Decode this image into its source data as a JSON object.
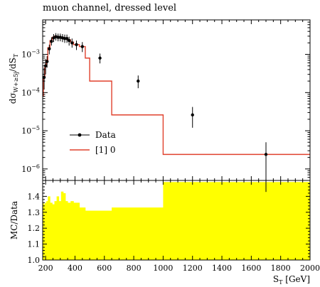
{
  "title": "muon channel, dressed level",
  "chart_data": [
    {
      "type": "line",
      "panel": "main",
      "ylabel": "dσ_{W+≥5j}/dS_T",
      "xlim": [
        180,
        2000
      ],
      "yscale": "log",
      "ylim": [
        5e-07,
        0.008
      ],
      "y_ticks": [
        {
          "value": 1e-06,
          "base": "10",
          "exp": "−6"
        },
        {
          "value": 1e-05,
          "base": "10",
          "exp": "−5"
        },
        {
          "value": 0.0001,
          "base": "10",
          "exp": "−4"
        },
        {
          "value": 0.001,
          "base": "10",
          "exp": "−3"
        }
      ],
      "legend_position": "lower-left",
      "series": [
        {
          "name": "Data",
          "style": "points",
          "color": "#000000",
          "x": [
            190,
            200,
            210,
            225,
            240,
            255,
            270,
            285,
            300,
            315,
            330,
            345,
            360,
            380,
            410,
            450,
            570,
            830,
            1200,
            1700
          ],
          "y": [
            0.00025,
            0.0005,
            0.00065,
            0.0014,
            0.0022,
            0.0027,
            0.0029,
            0.0028,
            0.0028,
            0.0027,
            0.0026,
            0.0026,
            0.0023,
            0.002,
            0.0018,
            0.0016,
            0.0008,
            0.0002,
            2.6e-05,
            2.4e-06
          ],
          "y_low": [
            0.00012,
            0.0003,
            0.00045,
            0.001,
            0.0017,
            0.0021,
            0.0023,
            0.0022,
            0.0022,
            0.0021,
            0.002,
            0.002,
            0.0017,
            0.0015,
            0.0013,
            0.00115,
            0.00058,
            0.00013,
            1.2e-05,
            2.5e-07
          ],
          "y_high": [
            0.00045,
            0.00075,
            0.0009,
            0.0018,
            0.0028,
            0.0034,
            0.0036,
            0.0035,
            0.0035,
            0.0034,
            0.0033,
            0.0033,
            0.0029,
            0.0026,
            0.0023,
            0.0021,
            0.00105,
            0.00028,
            4.2e-05,
            5e-06
          ]
        },
        {
          "name": "[1] 0",
          "style": "histogram",
          "color": "#e0412d",
          "edges": [
            180,
            185,
            195,
            205,
            215,
            230,
            245,
            260,
            275,
            290,
            305,
            320,
            335,
            350,
            370,
            390,
            430,
            470,
            500,
            650,
            1000,
            1400,
            2000
          ],
          "values": [
            8e-05,
            0.00026,
            0.00052,
            0.0007,
            0.0015,
            0.0023,
            0.0028,
            0.003,
            0.0029,
            0.0029,
            0.0028,
            0.0027,
            0.0027,
            0.0024,
            0.0021,
            0.0018,
            0.0016,
            0.0008,
            0.0002,
            2.6e-05,
            2.4e-06,
            2.4e-06
          ]
        }
      ]
    },
    {
      "type": "area",
      "panel": "ratio",
      "ylabel": "MC/Data",
      "xlabel": "S_T [GeV]",
      "xlim": [
        180,
        2000
      ],
      "ylim": [
        1.0,
        1.5
      ],
      "x_ticks": [
        200,
        400,
        600,
        800,
        1000,
        1200,
        1400,
        1600,
        1800,
        2000
      ],
      "y_ticks": [
        1.0,
        1.1,
        1.2,
        1.3,
        1.4
      ],
      "y_tick_labels": [
        "1.0",
        "1.1",
        "1.2",
        "1.3",
        "1.4"
      ],
      "fill_color": "#ffff00",
      "edges": [
        180,
        185,
        195,
        205,
        215,
        230,
        245,
        260,
        275,
        290,
        305,
        320,
        335,
        350,
        370,
        390,
        430,
        470,
        500,
        650,
        1000,
        2000
      ],
      "values": [
        1.36,
        1.35,
        1.36,
        1.37,
        1.4,
        1.36,
        1.35,
        1.37,
        1.4,
        1.37,
        1.43,
        1.42,
        1.37,
        1.36,
        1.37,
        1.36,
        1.33,
        1.31,
        1.31,
        1.33,
        1.49,
        1.49
      ]
    }
  ]
}
